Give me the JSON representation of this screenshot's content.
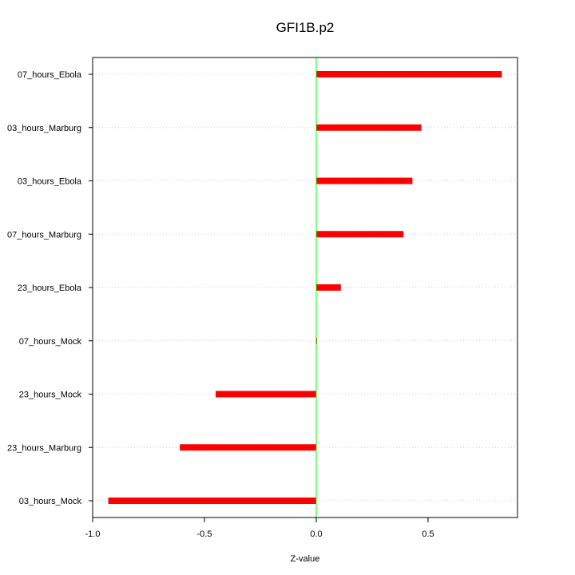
{
  "chart_data": {
    "type": "bar",
    "orientation": "horizontal",
    "title": "GFI1B.p2",
    "xlabel": "Z-value",
    "ylabel": "",
    "xlim": [
      -1.0,
      0.9
    ],
    "xticks": [
      -1.0,
      -0.5,
      0.0,
      0.5
    ],
    "xtick_labels": [
      "-1.0",
      "-0.5",
      "0.0",
      "0.5"
    ],
    "categories": [
      "07_hours_Ebola",
      "03_hours_Marburg",
      "03_hours_Ebola",
      "07_hours_Marburg",
      "23_hours_Ebola",
      "07_hours_Mock",
      "23_hours_Mock",
      "23_hours_Marburg",
      "03_hours_Mock"
    ],
    "values": [
      0.83,
      0.47,
      0.43,
      0.39,
      0.11,
      0.0,
      -0.45,
      -0.61,
      -0.93
    ],
    "reference_line": 0.0,
    "grid": "horizontal dotted",
    "colors": {
      "bar": "#ff0000",
      "bar_stripe": "#cc0000",
      "zero_line": "#00ff00",
      "grid": "#cccccc",
      "axis": "#000000"
    }
  }
}
